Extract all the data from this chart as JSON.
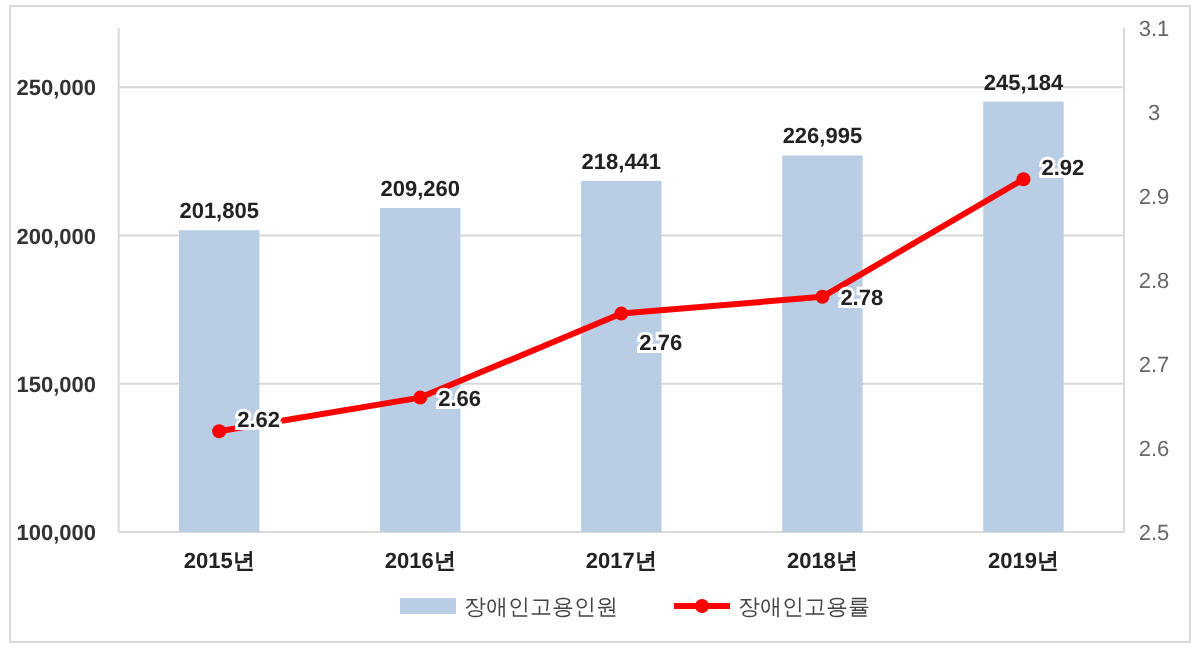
{
  "chart_data": {
    "type": "bar",
    "categories": [
      "2015년",
      "2016년",
      "2017년",
      "2018년",
      "2019년"
    ],
    "series": [
      {
        "name": "장애인고용인원",
        "color": "#b9cde5",
        "values": [
          201805,
          209260,
          218441,
          226995,
          245184
        ],
        "value_labels": [
          "201,805",
          "209,260",
          "218,441",
          "226,995",
          "245,184"
        ]
      },
      {
        "name": "장애인고용률",
        "type": "line",
        "axis": "y2",
        "color": "#ff0000",
        "marker": "circle",
        "values": [
          2.62,
          2.66,
          2.76,
          2.78,
          2.92
        ]
      }
    ],
    "ylim": [
      100000,
      270000
    ],
    "yticks": [
      {
        "value": 100000,
        "label": "100,000"
      },
      {
        "value": 150000,
        "label": "150,000"
      },
      {
        "value": 200000,
        "label": "200,000"
      },
      {
        "value": 250000,
        "label": "250,000"
      }
    ],
    "y2lim": [
      2.5,
      3.1
    ],
    "y2ticks": [
      2.5,
      2.6,
      2.7,
      2.8,
      2.9,
      3,
      3.1
    ],
    "grid": "y",
    "legend": "bottom",
    "data_labels": true
  }
}
